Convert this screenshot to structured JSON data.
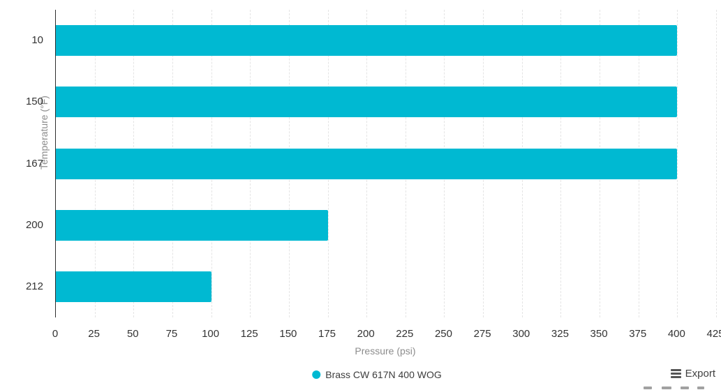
{
  "chart_data": {
    "type": "bar",
    "orientation": "horizontal",
    "title": "",
    "categories": [
      "10",
      "150",
      "167",
      "200",
      "212"
    ],
    "series": [
      {
        "name": "Brass CW 617N 400 WOG",
        "values": [
          400,
          400,
          400,
          175,
          100
        ],
        "color": "#00b9d2"
      }
    ],
    "xlabel": "Pressure (psi)",
    "ylabel": "Temperature (°F)",
    "xlim": [
      0,
      425
    ],
    "x_tick_step": 25,
    "grid": "vertical-dashed",
    "legend_position": "bottom-center"
  },
  "toolbar": {
    "export_label": "Export"
  },
  "colors": {
    "bar": "#00b9d2",
    "axis_line": "#2e2e2e",
    "gridline": "#e4e4e4",
    "tick_text": "#333333",
    "axis_title_text": "#8c8c8c",
    "legend_text": "#3c3c3c",
    "export_text": "#404040"
  }
}
